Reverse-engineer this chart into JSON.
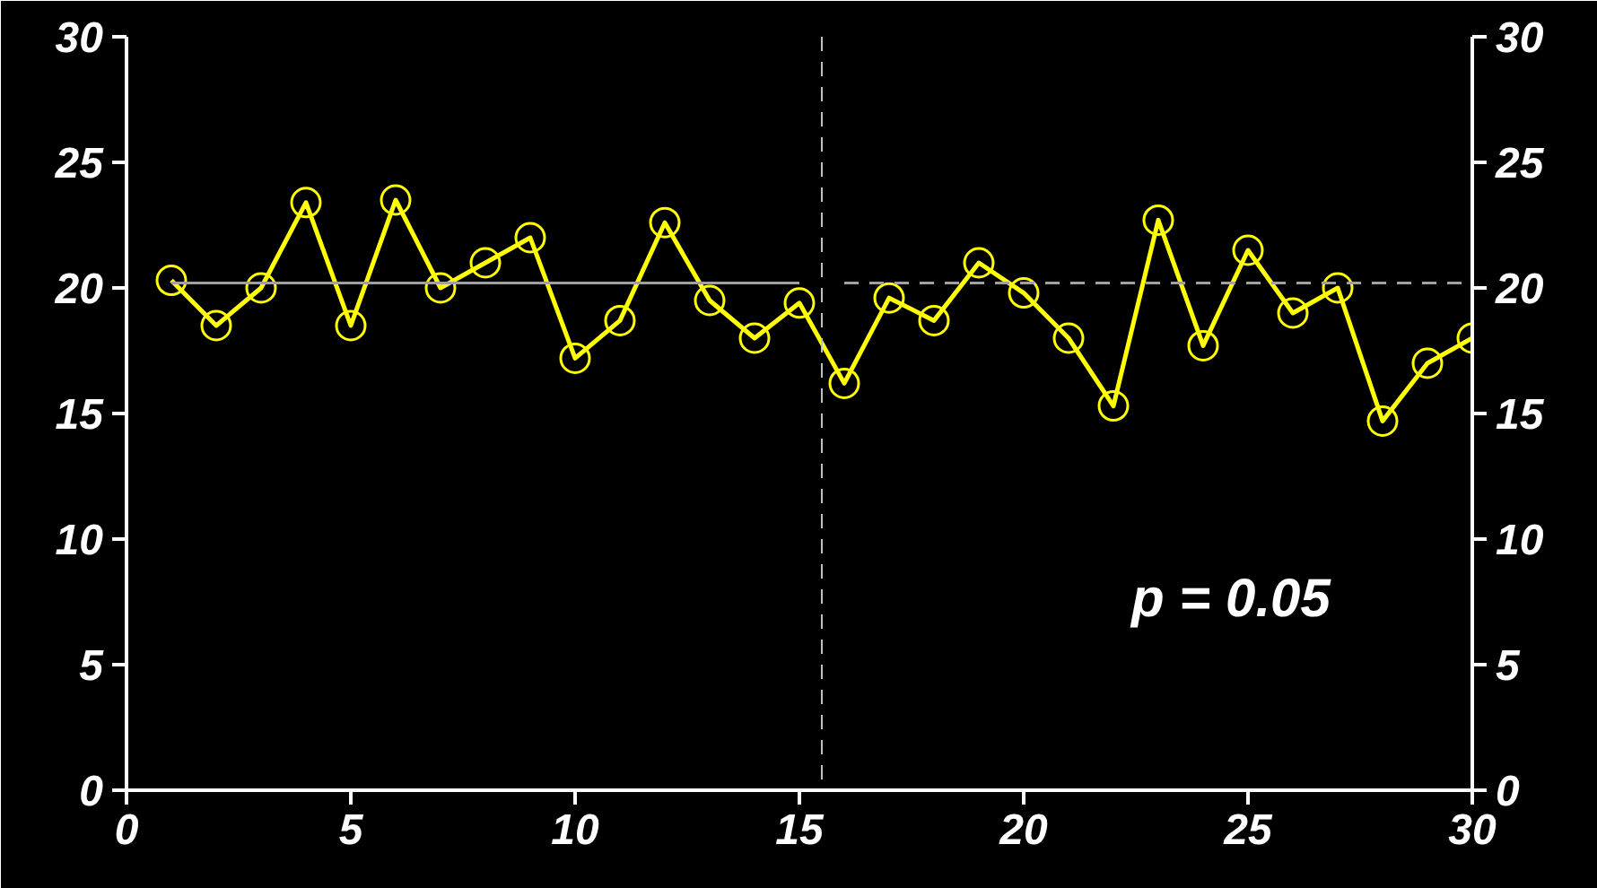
{
  "chart_data": {
    "type": "line",
    "x": [
      1,
      2,
      3,
      4,
      5,
      6,
      7,
      8,
      9,
      10,
      11,
      12,
      13,
      14,
      15,
      16,
      17,
      18,
      19,
      20,
      21,
      22,
      23,
      24,
      25,
      26,
      27,
      28,
      29,
      30
    ],
    "series": [
      {
        "color": "#ffff00",
        "marker": "circle",
        "line_style": "solid",
        "values": [
          20.3,
          18.5,
          20.0,
          23.4,
          18.5,
          23.5,
          20.0,
          21.0,
          22.0,
          17.2,
          18.7,
          22.6,
          19.5,
          18.0,
          19.4,
          16.2,
          19.6,
          18.7,
          21.0,
          19.8,
          18.0,
          15.3,
          22.7,
          17.7,
          21.5,
          19.0,
          20.0,
          14.7,
          17.0,
          18.0
        ]
      },
      {
        "color": "#a0a0a0",
        "marker": "none",
        "line_style": "solid",
        "x": [
          1,
          15
        ],
        "values": [
          20.2,
          20.2
        ]
      },
      {
        "color": "#a0a0a0",
        "marker": "none",
        "line_style": "dashed",
        "x": [
          16,
          30
        ],
        "values": [
          20.2,
          20.2
        ]
      }
    ],
    "ref_lines": [
      {
        "axis": "x",
        "value": 15.5,
        "label": null,
        "color": "#c0c0c0",
        "line_style": "dashed"
      }
    ],
    "annotations": [
      "p = 0.05"
    ],
    "xlim": [
      0,
      30
    ],
    "xticks": [
      0,
      5,
      10,
      15,
      20,
      25,
      30
    ],
    "ylim": [
      0,
      30
    ],
    "yticks": [
      0,
      5,
      10,
      15,
      20,
      25,
      30
    ],
    "y2lim": [
      0,
      30
    ],
    "y2ticks": [
      0,
      5,
      10,
      15,
      20,
      25,
      30
    ]
  }
}
